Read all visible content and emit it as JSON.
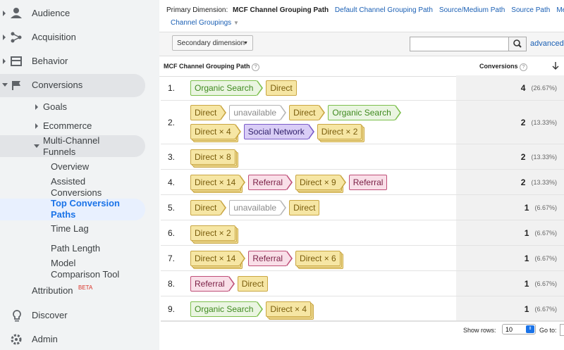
{
  "sidebar": {
    "top_items": [
      "Audience",
      "Acquisition",
      "Behavior",
      "Conversions"
    ],
    "conversions_children": [
      "Goals",
      "Ecommerce",
      "Multi-Channel Funnels"
    ],
    "mcf_children": [
      "Overview",
      "Assisted Conversions",
      "Top Conversion Paths",
      "Time Lag",
      "Path Length",
      "Model Comparison Tool"
    ],
    "attribution": "Attribution",
    "beta": "BETA",
    "discover": "Discover",
    "admin": "Admin"
  },
  "toolbar": {
    "primary_label": "Primary Dimension:",
    "primary_active": "MCF Channel Grouping Path",
    "links": [
      "Default Channel Grouping Path",
      "Source/Medium Path",
      "Source Path",
      "Medium"
    ],
    "channel_groupings": "Channel Groupings",
    "secondary_dimension": "Secondary dimension",
    "advanced": "advanced"
  },
  "table": {
    "headers": [
      "MCF Channel Grouping Path",
      "Conversions"
    ],
    "rows": [
      {
        "index": "1.",
        "path": [
          {
            "label": "Organic Search",
            "color": "#eaf5e1"
          },
          {
            "label": "Direct",
            "color": "#f6e6a4"
          }
        ],
        "conversions": 4,
        "percent": "(26.67%)"
      },
      {
        "index": "2.",
        "path": [
          {
            "label": "Direct",
            "color": "#f6e6a4"
          },
          {
            "label": "unavailable",
            "color": "#ffffff"
          },
          {
            "label": "Direct",
            "color": "#f6e6a4"
          },
          {
            "label": "Organic Search",
            "color": "#eaf5e1"
          },
          {
            "label": "Direct × 4",
            "color": "#f6e6a4",
            "stacked": true
          },
          {
            "label": "Social Network",
            "color": "#d9cdf6"
          },
          {
            "label": "Direct × 2",
            "color": "#f6e6a4",
            "stacked": true
          }
        ],
        "conversions": 2,
        "percent": "(13.33%)"
      },
      {
        "index": "3.",
        "path": [
          {
            "label": "Direct × 8",
            "color": "#f6e6a4",
            "stacked": true
          }
        ],
        "conversions": 2,
        "percent": "(13.33%)"
      },
      {
        "index": "4.",
        "path": [
          {
            "label": "Direct × 14",
            "color": "#f6e6a4",
            "stacked": true
          },
          {
            "label": "Referral",
            "color": "#f9dfe8"
          },
          {
            "label": "Direct × 9",
            "color": "#f6e6a4",
            "stacked": true
          },
          {
            "label": "Referral",
            "color": "#f9dfe8"
          }
        ],
        "conversions": 2,
        "percent": "(13.33%)"
      },
      {
        "index": "5.",
        "path": [
          {
            "label": "Direct",
            "color": "#f6e6a4"
          },
          {
            "label": "unavailable",
            "color": "#ffffff"
          },
          {
            "label": "Direct",
            "color": "#f6e6a4"
          }
        ],
        "conversions": 1,
        "percent": "(6.67%)"
      },
      {
        "index": "6.",
        "path": [
          {
            "label": "Direct × 2",
            "color": "#f6e6a4",
            "stacked": true
          }
        ],
        "conversions": 1,
        "percent": "(6.67%)"
      },
      {
        "index": "7.",
        "path": [
          {
            "label": "Direct × 14",
            "color": "#f6e6a4",
            "stacked": true
          },
          {
            "label": "Referral",
            "color": "#f9dfe8"
          },
          {
            "label": "Direct × 6",
            "color": "#f6e6a4",
            "stacked": true
          }
        ],
        "conversions": 1,
        "percent": "(6.67%)"
      },
      {
        "index": "8.",
        "path": [
          {
            "label": "Referral",
            "color": "#f9dfe8"
          },
          {
            "label": "Direct",
            "color": "#f6e6a4"
          }
        ],
        "conversions": 1,
        "percent": "(6.67%)"
      },
      {
        "index": "9.",
        "path": [
          {
            "label": "Organic Search",
            "color": "#eaf5e1"
          },
          {
            "label": "Direct × 4",
            "color": "#f6e6a4",
            "stacked": true
          }
        ],
        "conversions": 1,
        "percent": "(6.67%)"
      }
    ]
  },
  "footer": {
    "show_rows": "Show rows:",
    "rows_value": 10,
    "go_to": "Go to:"
  }
}
